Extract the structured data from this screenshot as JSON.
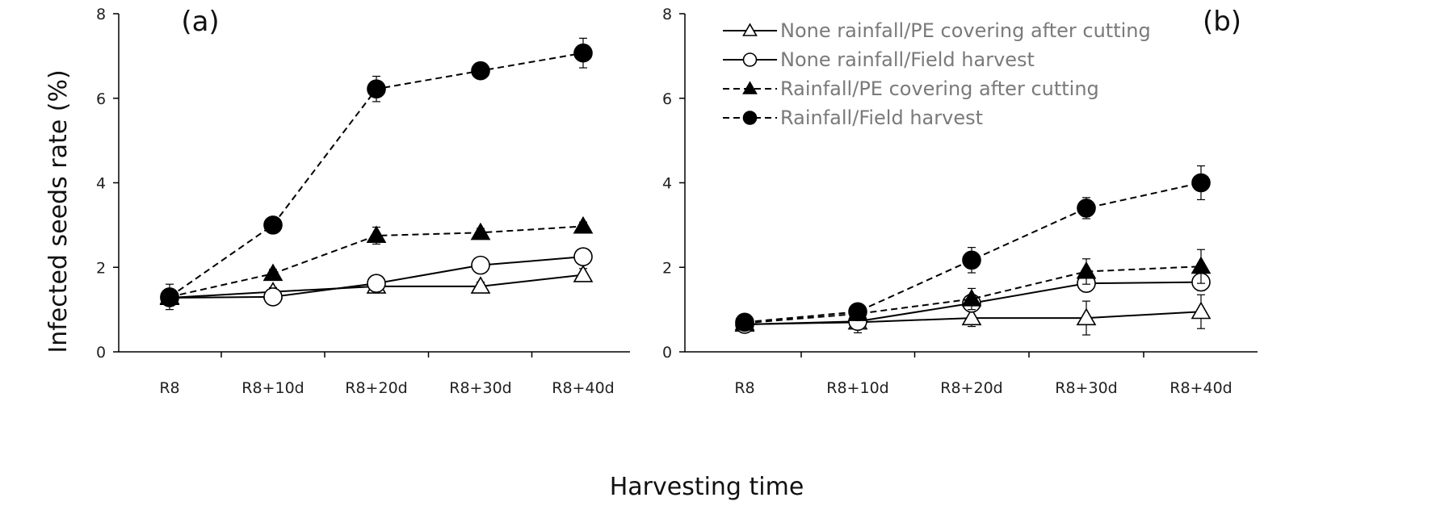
{
  "figure": {
    "ylabel": "Infected seeds rate (%)",
    "xlabel": "Harvesting time"
  },
  "legend": [
    {
      "name": "None rainfall/PE covering after cutting",
      "line": "solid",
      "marker": "triangle",
      "fill": "open"
    },
    {
      "name": "None rainfall/Field harvest",
      "line": "solid",
      "marker": "circle",
      "fill": "open"
    },
    {
      "name": "Rainfall/PE covering after cutting",
      "line": "dashed",
      "marker": "triangle",
      "fill": "filled"
    },
    {
      "name": "Rainfall/Field harvest",
      "line": "dashed",
      "marker": "circle",
      "fill": "filled"
    }
  ],
  "chart_data": [
    {
      "type": "line",
      "panel": "(a)",
      "categories": [
        "R8",
        "R8+10d",
        "R8+20d",
        "R8+30d",
        "R8+40d"
      ],
      "ylim": [
        0,
        8
      ],
      "yticks": [
        0,
        2,
        4,
        6,
        8
      ],
      "grid": false,
      "series": [
        {
          "name": "None rainfall/PE covering after cutting",
          "values": [
            1.28,
            1.42,
            1.55,
            1.55,
            1.82
          ],
          "errors": [
            0.1,
            0.1,
            0.1,
            0.1,
            0.15
          ]
        },
        {
          "name": "None rainfall/Field harvest",
          "values": [
            1.28,
            1.3,
            1.62,
            2.05,
            2.25
          ],
          "errors": [
            0.1,
            0.1,
            0.1,
            0.1,
            0.12
          ]
        },
        {
          "name": "Rainfall/PE covering after cutting",
          "values": [
            1.3,
            1.85,
            2.75,
            2.82,
            2.97
          ],
          "errors": [
            0.1,
            0.1,
            0.2,
            0.1,
            0.1
          ]
        },
        {
          "name": "Rainfall/Field harvest",
          "values": [
            1.3,
            3.0,
            6.22,
            6.65,
            7.07
          ],
          "errors": [
            0.3,
            0.1,
            0.3,
            0.1,
            0.35
          ]
        }
      ]
    },
    {
      "type": "line",
      "panel": "(b)",
      "categories": [
        "R8",
        "R8+10d",
        "R8+20d",
        "R8+30d",
        "R8+40d"
      ],
      "ylim": [
        0,
        8
      ],
      "yticks": [
        0,
        2,
        4,
        6,
        8
      ],
      "grid": false,
      "series": [
        {
          "name": "None rainfall/PE covering after cutting",
          "values": [
            0.65,
            0.7,
            0.8,
            0.8,
            0.95
          ],
          "errors": [
            0.05,
            0.25,
            0.2,
            0.4,
            0.4
          ]
        },
        {
          "name": "None rainfall/Field harvest",
          "values": [
            0.65,
            0.72,
            1.15,
            1.62,
            1.65
          ],
          "errors": [
            0.05,
            0.1,
            0.2,
            0.2,
            0.2
          ]
        },
        {
          "name": "Rainfall/PE covering after cutting",
          "values": [
            0.68,
            0.9,
            1.25,
            1.9,
            2.02
          ],
          "errors": [
            0.05,
            0.1,
            0.25,
            0.3,
            0.4
          ]
        },
        {
          "name": "Rainfall/Field harvest",
          "values": [
            0.7,
            0.95,
            2.17,
            3.4,
            4.0
          ],
          "errors": [
            0.05,
            0.1,
            0.3,
            0.25,
            0.4
          ]
        }
      ]
    }
  ]
}
